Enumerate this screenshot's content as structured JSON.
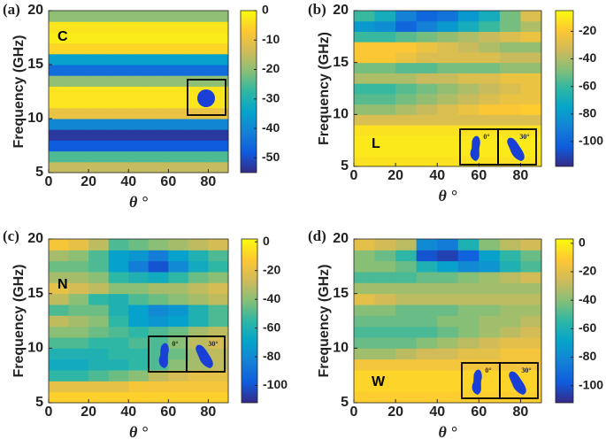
{
  "chart_data": [
    {
      "type": "heatmap",
      "panel_label": "(a)",
      "annotation": "C",
      "xlabel": "θ °",
      "ylabel": "Frequency (GHz)",
      "x_bins": [
        0,
        10,
        20,
        30,
        40,
        50,
        60,
        70,
        80,
        90
      ],
      "y_bins": [
        5,
        6,
        7,
        8,
        9,
        10,
        11,
        12,
        13,
        14,
        15,
        16,
        17,
        18,
        19,
        20
      ],
      "xlim": [
        0,
        90
      ],
      "ylim": [
        5,
        20
      ],
      "xticks": [
        0,
        20,
        40,
        60,
        80
      ],
      "yticks": [
        5,
        10,
        15,
        20
      ],
      "clim": [
        -55,
        0
      ],
      "cticks": [
        0,
        -10,
        -20,
        -30,
        -40,
        -50
      ],
      "colormap": [
        "#352a87",
        "#0f5cdd",
        "#1481d6",
        "#06a4ca",
        "#2eb7a4",
        "#87bf77",
        "#d1bb59",
        "#fec832",
        "#f9fb0e"
      ],
      "inset_labels": [],
      "z": [
        [
          -15,
          -15,
          -15,
          -15,
          -15,
          -15,
          -15,
          -15,
          -15
        ],
        [
          -25,
          -25,
          -25,
          -25,
          -25,
          -25,
          -25,
          -25,
          -25
        ],
        [
          -48,
          -48,
          -48,
          -48,
          -48,
          -48,
          -48,
          -48,
          -48
        ],
        [
          -53,
          -53,
          -53,
          -53,
          -53,
          -53,
          -53,
          -53,
          -53
        ],
        [
          -40,
          -40,
          -40,
          -40,
          -40,
          -40,
          -40,
          -40,
          -40
        ],
        [
          -10,
          -10,
          -10,
          -10,
          -10,
          -10,
          -10,
          -10,
          -10
        ],
        [
          -3,
          -3,
          -3,
          -3,
          -3,
          -3,
          -3,
          -3,
          -3
        ],
        [
          -3,
          -3,
          -3,
          -3,
          -3,
          -3,
          -3,
          -3,
          -3
        ],
        [
          -20,
          -20,
          -20,
          -20,
          -20,
          -20,
          -20,
          -20,
          -20
        ],
        [
          -45,
          -45,
          -45,
          -45,
          -45,
          -45,
          -45,
          -45,
          -45
        ],
        [
          -35,
          -35,
          -35,
          -35,
          -35,
          -35,
          -35,
          -35,
          -35
        ],
        [
          -5,
          -5,
          -5,
          -5,
          -5,
          -5,
          -5,
          -5,
          -5
        ],
        [
          -2,
          -2,
          -2,
          -2,
          -2,
          -2,
          -2,
          -2,
          -2
        ],
        [
          -3,
          -3,
          -3,
          -3,
          -3,
          -3,
          -3,
          -3,
          -3
        ],
        [
          -20,
          -20,
          -20,
          -20,
          -20,
          -20,
          -20,
          -20,
          -20
        ]
      ]
    },
    {
      "type": "heatmap",
      "panel_label": "(b)",
      "annotation": "L",
      "xlabel": "θ °",
      "ylabel": "Frequency (GHz)",
      "x_bins": [
        0,
        10,
        20,
        30,
        40,
        50,
        60,
        70,
        80,
        90
      ],
      "y_bins": [
        5,
        6,
        7,
        8,
        9,
        10,
        11,
        12,
        13,
        14,
        15,
        16,
        17,
        18,
        19,
        20
      ],
      "xlim": [
        0,
        90
      ],
      "ylim": [
        5,
        20
      ],
      "xticks": [
        0,
        20,
        40,
        60,
        80
      ],
      "yticks": [
        5,
        10,
        15,
        20
      ],
      "clim": [
        -118,
        -5
      ],
      "cticks": [
        -20,
        -40,
        -60,
        -80,
        -100
      ],
      "colormap": [
        "#352a87",
        "#0f5cdd",
        "#1481d6",
        "#06a4ca",
        "#2eb7a4",
        "#87bf77",
        "#d1bb59",
        "#fec832",
        "#f9fb0e"
      ],
      "inset_labels": [
        "0°",
        "30°"
      ],
      "z": [
        [
          -12,
          -12,
          -12,
          -12,
          -12,
          -12,
          -12,
          -12,
          -12
        ],
        [
          -10,
          -10,
          -10,
          -10,
          -10,
          -10,
          -10,
          -10,
          -10
        ],
        [
          -10,
          -10,
          -10,
          -10,
          -10,
          -10,
          -10,
          -10,
          -10
        ],
        [
          -12,
          -12,
          -12,
          -12,
          -12,
          -12,
          -12,
          -12,
          -12
        ],
        [
          -30,
          -30,
          -30,
          -30,
          -30,
          -30,
          -30,
          -30,
          -30
        ],
        [
          -45,
          -45,
          -40,
          -35,
          -30,
          -25,
          -20,
          -20,
          -18
        ],
        [
          -55,
          -55,
          -50,
          -45,
          -40,
          -35,
          -30,
          -25,
          -25
        ],
        [
          -60,
          -60,
          -55,
          -50,
          -45,
          -40,
          -35,
          -30,
          -25
        ],
        [
          -40,
          -40,
          -40,
          -35,
          -35,
          -30,
          -30,
          -25,
          -25
        ],
        [
          -50,
          -50,
          -55,
          -55,
          -50,
          -50,
          -50,
          -45,
          -45
        ],
        [
          -20,
          -20,
          -25,
          -30,
          -30,
          -30,
          -30,
          -35,
          -35
        ],
        [
          -20,
          -20,
          -20,
          -25,
          -30,
          -35,
          -40,
          -45,
          -45
        ],
        [
          -60,
          -60,
          -55,
          -50,
          -45,
          -40,
          -35,
          -30,
          -25
        ],
        [
          -80,
          -85,
          -100,
          -90,
          -80,
          -70,
          -60,
          -50,
          -40
        ],
        [
          -60,
          -70,
          -90,
          -100,
          -95,
          -80,
          -70,
          -50,
          -30
        ]
      ]
    },
    {
      "type": "heatmap",
      "panel_label": "(c)",
      "annotation": "N",
      "xlabel": "θ °",
      "ylabel": "Frequency (GHz)",
      "x_bins": [
        0,
        10,
        20,
        30,
        40,
        50,
        60,
        70,
        80,
        90
      ],
      "y_bins": [
        5,
        6,
        7,
        8,
        9,
        10,
        11,
        12,
        13,
        14,
        15,
        16,
        17,
        18,
        19,
        20
      ],
      "xlim": [
        0,
        90
      ],
      "ylim": [
        5,
        20
      ],
      "xticks": [
        0,
        20,
        40,
        60,
        80
      ],
      "yticks": [
        5,
        10,
        15,
        20
      ],
      "clim": [
        -112,
        2
      ],
      "cticks": [
        0,
        -20,
        -40,
        -60,
        -80,
        -100
      ],
      "colormap": [
        "#352a87",
        "#0f5cdd",
        "#1481d6",
        "#06a4ca",
        "#2eb7a4",
        "#87bf77",
        "#d1bb59",
        "#fec832",
        "#f9fb0e"
      ],
      "inset_labels": [
        "0°",
        "30°"
      ],
      "z": [
        [
          -10,
          -10,
          -10,
          -10,
          -10,
          -10,
          -10,
          -10,
          -10
        ],
        [
          -20,
          -20,
          -20,
          -20,
          -15,
          -15,
          -15,
          -15,
          -15
        ],
        [
          -55,
          -55,
          -50,
          -45,
          -40,
          -30,
          -25,
          -20,
          -20
        ],
        [
          -65,
          -65,
          -60,
          -60,
          -55,
          -50,
          -40,
          -35,
          -30
        ],
        [
          -60,
          -60,
          -60,
          -55,
          -55,
          -50,
          -45,
          -35,
          -30
        ],
        [
          -50,
          -50,
          -55,
          -55,
          -50,
          -50,
          -40,
          -30,
          -25
        ],
        [
          -40,
          -40,
          -45,
          -50,
          -55,
          -50,
          -45,
          -35,
          -30
        ],
        [
          -30,
          -35,
          -40,
          -55,
          -70,
          -75,
          -70,
          -60,
          -50
        ],
        [
          -50,
          -45,
          -45,
          -60,
          -70,
          -80,
          -75,
          -60,
          -50
        ],
        [
          -30,
          -40,
          -55,
          -60,
          -50,
          -45,
          -40,
          -35,
          -30
        ],
        [
          -20,
          -25,
          -30,
          -40,
          -40,
          -35,
          -35,
          -30,
          -25
        ],
        [
          -35,
          -35,
          -40,
          -55,
          -60,
          -65,
          -55,
          -45,
          -40
        ],
        [
          -45,
          -45,
          -50,
          -70,
          -85,
          -100,
          -80,
          -65,
          -55
        ],
        [
          -35,
          -40,
          -50,
          -70,
          -75,
          -85,
          -70,
          -60,
          -50
        ],
        [
          -15,
          -20,
          -30,
          -50,
          -45,
          -40,
          -35,
          -30,
          -25
        ]
      ]
    },
    {
      "type": "heatmap",
      "panel_label": "(d)",
      "annotation": "W",
      "xlabel": "θ °",
      "ylabel": "Frequency (GHz)",
      "x_bins": [
        0,
        10,
        20,
        30,
        40,
        50,
        60,
        70,
        80,
        90
      ],
      "y_bins": [
        5,
        6,
        7,
        8,
        9,
        10,
        11,
        12,
        13,
        14,
        15,
        16,
        17,
        18,
        19,
        20
      ],
      "xlim": [
        0,
        90
      ],
      "ylim": [
        5,
        20
      ],
      "xticks": [
        0,
        20,
        40,
        60,
        80
      ],
      "yticks": [
        5,
        10,
        15,
        20
      ],
      "clim": [
        -112,
        3
      ],
      "cticks": [
        0,
        -20,
        -40,
        -60,
        -80,
        -100
      ],
      "colormap": [
        "#352a87",
        "#0f5cdd",
        "#1481d6",
        "#06a4ca",
        "#2eb7a4",
        "#87bf77",
        "#d1bb59",
        "#fec832",
        "#f9fb0e"
      ],
      "inset_labels": [
        "0°",
        "30°"
      ],
      "z": [
        [
          -10,
          -10,
          -10,
          -10,
          -10,
          -10,
          -10,
          -10,
          -10
        ],
        [
          -8,
          -8,
          -8,
          -8,
          -8,
          -8,
          -8,
          -8,
          -8
        ],
        [
          -8,
          -8,
          -8,
          -8,
          -8,
          -8,
          -8,
          -8,
          -8
        ],
        [
          -15,
          -15,
          -15,
          -15,
          -15,
          -15,
          -15,
          -15,
          -15
        ],
        [
          -35,
          -35,
          -30,
          -25,
          -25,
          -20,
          -20,
          -15,
          -15
        ],
        [
          -45,
          -45,
          -45,
          -40,
          -35,
          -30,
          -25,
          -20,
          -20
        ],
        [
          -50,
          -50,
          -50,
          -50,
          -45,
          -40,
          -35,
          -30,
          -25
        ],
        [
          -45,
          -45,
          -45,
          -45,
          -40,
          -40,
          -35,
          -35,
          -30
        ],
        [
          -40,
          -40,
          -45,
          -45,
          -45,
          -40,
          -40,
          -35,
          -35
        ],
        [
          -20,
          -25,
          -30,
          -30,
          -30,
          -30,
          -30,
          -30,
          -30
        ],
        [
          -35,
          -35,
          -35,
          -35,
          -35,
          -35,
          -35,
          -35,
          -35
        ],
        [
          -50,
          -50,
          -50,
          -45,
          -45,
          -40,
          -35,
          -30,
          -25
        ],
        [
          -40,
          -40,
          -45,
          -60,
          -70,
          -80,
          -75,
          -60,
          -50
        ],
        [
          -40,
          -45,
          -55,
          -100,
          -105,
          -95,
          -70,
          -55,
          -45
        ],
        [
          -20,
          -25,
          -30,
          -80,
          -85,
          -60,
          -40,
          -30,
          -25
        ]
      ]
    }
  ]
}
